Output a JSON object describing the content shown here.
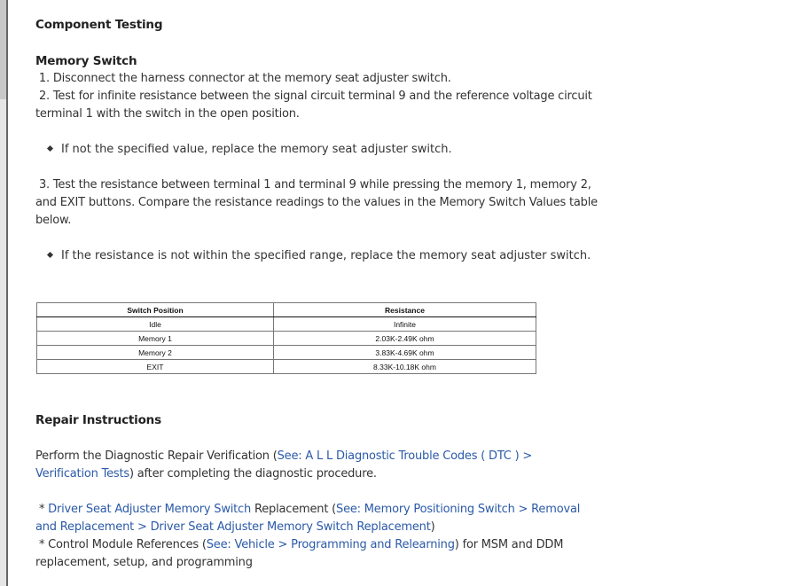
{
  "heading_component_testing": "Component Testing",
  "heading_memory_switch": "Memory Switch",
  "steps": [
    " 1. Disconnect the harness connector at the memory seat adjuster switch.",
    " 2. Test for infinite resistance between the signal circuit terminal 9 and the reference voltage circuit terminal 1 with the switch in the open position.",
    " 3. Test the resistance between terminal 1 and terminal 9 while pressing the memory 1, memory 2, and EXIT buttons. Compare the resistance readings to the values in the Memory Switch Values table below."
  ],
  "bullets": [
    "If not the specified value, replace the memory seat adjuster switch.",
    "If the resistance is not within the specified range, replace the memory seat adjuster switch."
  ],
  "table": {
    "headers": [
      "Switch Position",
      "Resistance"
    ],
    "rows": [
      [
        "Idle",
        "Infinite"
      ],
      [
        "Memory 1",
        "2.03K-2.49K ohm"
      ],
      [
        "Memory 2",
        "3.83K-4.69K ohm"
      ],
      [
        "EXIT",
        "8.33K-10.18K ohm"
      ]
    ]
  },
  "heading_repair": "Repair Instructions",
  "repair": {
    "p1_pre": "Perform the Diagnostic Repair Verification (",
    "p1_link": "See: A L L Diagnostic Trouble Codes ( DTC ) > Verification Tests",
    "p1_post": ") after completing the diagnostic procedure.",
    "i1_star": " * ",
    "i1_link": "Driver Seat Adjuster Memory Switch",
    "i1_mid": " Replacement (",
    "i1_link2": "See: Memory Positioning Switch > Removal and Replacement > Driver Seat Adjuster Memory Switch Replacement",
    "i1_post": ")",
    "i2_pre": " * Control Module References (",
    "i2_link": "See: Vehicle > Programming and Relearning",
    "i2_post": ") for MSM and DDM replacement, setup, and programming"
  }
}
